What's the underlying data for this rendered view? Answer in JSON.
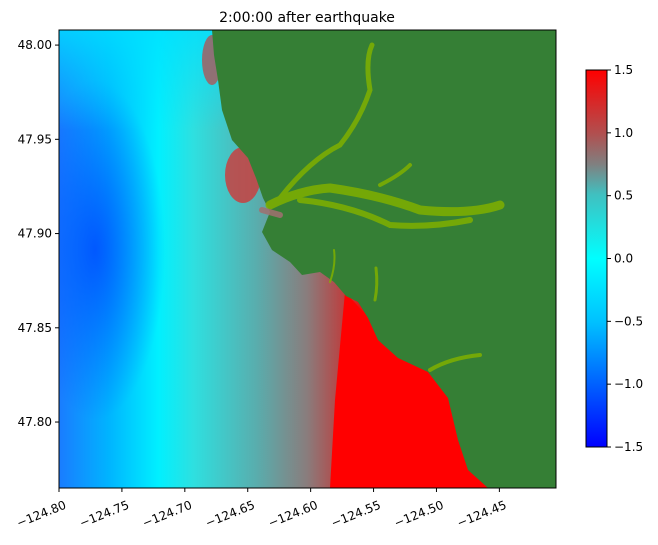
{
  "chart_data": {
    "type": "heatmap",
    "title": "2:00:00 after earthquake",
    "xlabel": "",
    "ylabel": "",
    "xlim": [
      -124.8,
      -124.405
    ],
    "ylim": [
      47.765,
      48.008
    ],
    "xticks": [
      "−124.80",
      "−124.75",
      "−124.70",
      "−124.65",
      "−124.60",
      "−124.55",
      "−124.50",
      "−124.45"
    ],
    "xtick_values": [
      -124.8,
      -124.75,
      -124.7,
      -124.65,
      -124.6,
      -124.55,
      -124.5,
      -124.45
    ],
    "yticks": [
      "48.00",
      "47.95",
      "47.90",
      "47.85",
      "47.80"
    ],
    "ytick_values": [
      48.0,
      47.95,
      47.9,
      47.85,
      47.8
    ],
    "colorbar": {
      "range": [
        -1.5,
        1.5
      ],
      "ticks": [
        "1.5",
        "1.0",
        "0.5",
        "0.0",
        "−0.5",
        "−1.0",
        "−1.5"
      ],
      "tick_values": [
        1.5,
        1.0,
        0.5,
        0.0,
        -0.5,
        -1.0,
        -1.5
      ],
      "colors": {
        "low": "#0000ff",
        "zero": "#00ffff",
        "mid": "#808080",
        "high": "#ff0000"
      }
    },
    "land_color": "#357f35",
    "inundation_color": "#7fb000",
    "grid": false
  }
}
